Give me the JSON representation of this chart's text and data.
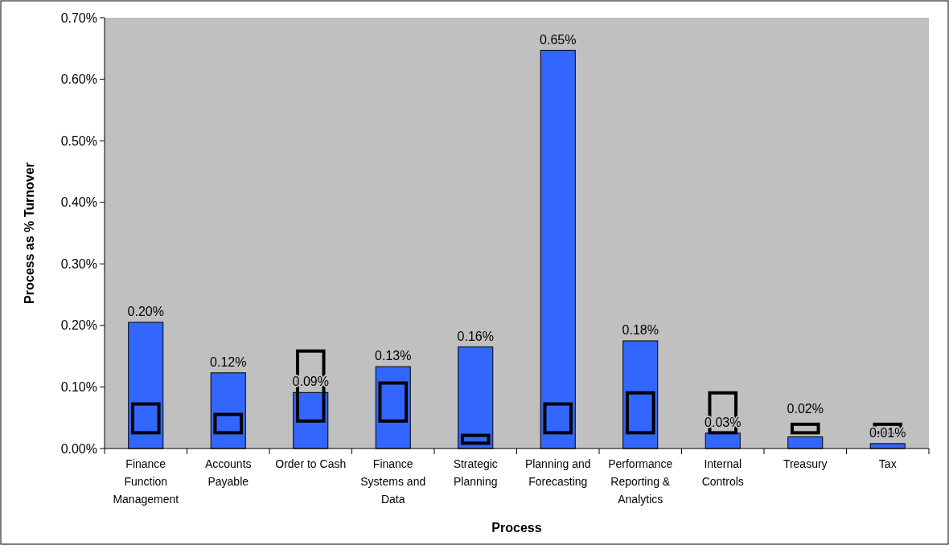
{
  "chart_data": {
    "type": "bar",
    "xlabel": "Process",
    "ylabel": "Process as % Turnover",
    "categories": [
      "Finance Function Management",
      "Accounts Payable",
      "Order to Cash",
      "Finance Systems and Data",
      "Strategic Planning",
      "Planning and Forecasting",
      "Performance Reporting & Analytics",
      "Internal Controls",
      "Treasury",
      "Tax"
    ],
    "series": [
      {
        "color": "#3366ff",
        "values": [
          0.205,
          0.123,
          0.091,
          0.133,
          0.165,
          0.647,
          0.175,
          0.025,
          0.019,
          0.008
        ],
        "value_labels": [
          "0.20%",
          "0.12%",
          "0.09%",
          "0.13%",
          "0.16%",
          "0.65%",
          "0.18%",
          "0.03%",
          "0.02%",
          "0.01%"
        ]
      },
      {
        "color": "#000000",
        "base": [
          0.023,
          0.023,
          0.042,
          0.042,
          0.006,
          0.023,
          0.023,
          0.023,
          0.023,
          0.023
        ],
        "values": [
          0.052,
          0.035,
          0.119,
          0.067,
          0.018,
          0.052,
          0.07,
          0.07,
          0.019,
          0.019
        ]
      }
    ],
    "ylim": [
      0,
      0.7
    ],
    "yticks": [
      {
        "value": 0,
        "label": "0.00%"
      },
      {
        "value": 0.1,
        "label": "0.10%"
      },
      {
        "value": 0.2,
        "label": "0.20%"
      },
      {
        "value": 0.3,
        "label": "0.30%"
      },
      {
        "value": 0.4,
        "label": "0.40%"
      },
      {
        "value": 0.5,
        "label": "0.50%"
      },
      {
        "value": 0.6,
        "label": "0.60%"
      },
      {
        "value": 0.7,
        "label": "0.70%"
      }
    ],
    "grid": false
  }
}
